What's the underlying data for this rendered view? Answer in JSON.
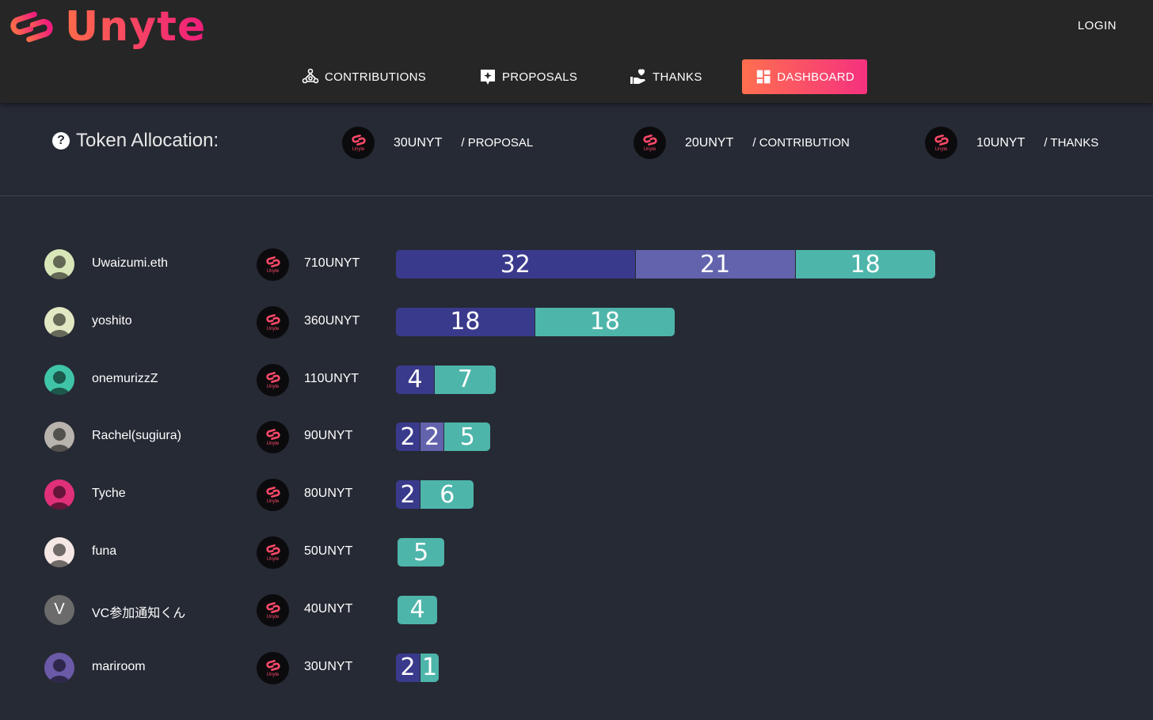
{
  "app": {
    "brand": "Unyte",
    "login_label": "LOGIN"
  },
  "nav": [
    {
      "label": "CONTRIBUTIONS",
      "icon": "people-network-icon"
    },
    {
      "label": "PROPOSALS",
      "icon": "proposal-star-icon"
    },
    {
      "label": "THANKS",
      "icon": "hand-heart-icon"
    },
    {
      "label": "DASHBOARD",
      "icon": "dashboard-icon",
      "active": true
    }
  ],
  "allocation": {
    "title": "Token Allocation:",
    "items": [
      {
        "amount": "30UNYT",
        "per": "/ PROPOSAL"
      },
      {
        "amount": "20UNYT",
        "per": "/ CONTRIBUTION"
      },
      {
        "amount": "10UNYT",
        "per": "/ THANKS"
      }
    ]
  },
  "token_icon_label": "Unyte",
  "colors": {
    "proposal": "#3a3a8c",
    "contribution": "#6363ad",
    "thanks": "#4eb5ab",
    "accent": "#f5317f"
  },
  "users": [
    {
      "name": "Uwaizumi.eth",
      "tokens": "710UNYT",
      "proposals": 32,
      "contributions": 21,
      "thanks": 18,
      "avatar_color": "#d9e6b8"
    },
    {
      "name": "yoshito",
      "tokens": "360UNYT",
      "proposals": 18,
      "contributions": 0,
      "thanks": 18,
      "avatar_color": "#e3e8c4"
    },
    {
      "name": "onemurizzZ",
      "tokens": "110UNYT",
      "proposals": 4,
      "contributions": 0,
      "thanks": 7,
      "avatar_color": "#3fc4a8"
    },
    {
      "name": "Rachel(sugiura)",
      "tokens": "90UNYT",
      "proposals": 2,
      "contributions": 2,
      "thanks": 5,
      "avatar_color": "#b9b3ad"
    },
    {
      "name": "Tyche",
      "tokens": "80UNYT",
      "proposals": 2,
      "contributions": 0,
      "thanks": 6,
      "avatar_color": "#e0307a"
    },
    {
      "name": "funa",
      "tokens": "50UNYT",
      "proposals": 0,
      "contributions": 0,
      "thanks": 5,
      "avatar_color": "#f5e8e4"
    },
    {
      "name": "VC参加通知くん",
      "tokens": "40UNYT",
      "proposals": 0,
      "contributions": 0,
      "thanks": 4,
      "avatar_color": "#6b6b6b",
      "initial": "V"
    },
    {
      "name": "mariroom",
      "tokens": "30UNYT",
      "proposals": 2,
      "contributions": 0,
      "thanks": 1,
      "avatar_color": "#6a5aa8"
    }
  ]
}
